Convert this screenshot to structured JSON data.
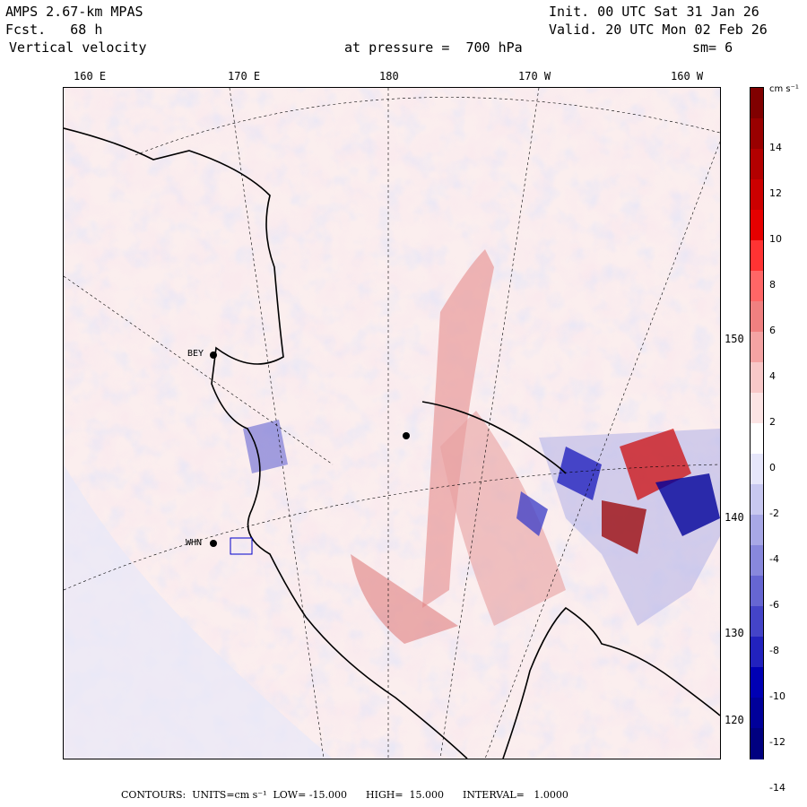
{
  "header": {
    "model": "AMPS 2.67-km MPAS",
    "forecast": "Fcst.   68 h",
    "field": "Vertical velocity",
    "init": "Init. 00 UTC Sat 31 Jan 26",
    "valid": "Valid. 20 UTC Mon 02 Feb 26",
    "pressure": "at pressure =  700 hPa",
    "smoothing": "sm= 6"
  },
  "map": {
    "lon_labels": [
      "160 E",
      "170 E",
      "180",
      "170 W",
      "160 W"
    ],
    "lat_labels": [
      "150 W",
      "140 W",
      "130 W",
      "120 W"
    ],
    "stations": [
      "BEY",
      "WHN"
    ]
  },
  "colorbar": {
    "units": "cm s⁻¹",
    "labels": [
      "14",
      "12",
      "10",
      "8",
      "6",
      "4",
      "2",
      "0",
      "-2",
      "-4",
      "-6",
      "-8",
      "-10",
      "-12",
      "-14"
    ],
    "colors": [
      "#800000",
      "#990000",
      "#b30000",
      "#cc0000",
      "#e60000",
      "#ff3333",
      "#ff6666",
      "#f08080",
      "#f4a3a3",
      "#f8c8c8",
      "#fce4e4",
      "#ffffff",
      "#e6e6fa",
      "#c8c8f0",
      "#a8a8e6",
      "#8888dc",
      "#6666d2",
      "#4444c8",
      "#2222be",
      "#0000b4",
      "#00009a",
      "#000080"
    ]
  },
  "footer": {
    "text": "CONTOURS:  UNITS=cm s⁻¹  LOW= -15.000      HIGH=  15.000      INTERVAL=   1.0000"
  }
}
